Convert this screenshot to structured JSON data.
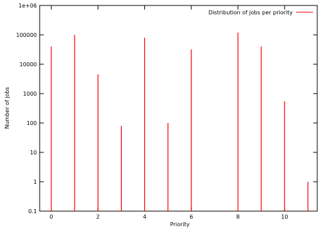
{
  "chart_data": {
    "type": "bar",
    "style": "impulses",
    "title": "",
    "xlabel": "Priority",
    "ylabel": "Number of jobs",
    "yscale": "log",
    "xlim": [
      -0.5,
      11.4
    ],
    "ylim": [
      0.1,
      1000000
    ],
    "x_ticks": [
      0,
      2,
      4,
      6,
      8,
      10
    ],
    "x_tick_labels": [
      "0",
      "2",
      "4",
      "6",
      "8",
      "10"
    ],
    "y_ticks": [
      0.1,
      1,
      10,
      100,
      1000,
      10000,
      100000,
      1000000
    ],
    "y_tick_labels": [
      "0.1",
      "1",
      "10",
      "100",
      "1000",
      "10000",
      "100000",
      "1e+06"
    ],
    "grid": false,
    "legend_position": "top-right",
    "series": [
      {
        "name": "Distribution of jobs per priority",
        "color": "#ff0000",
        "x": [
          0,
          1,
          2,
          3,
          4,
          5,
          6,
          8,
          9,
          10,
          11
        ],
        "values": [
          40000,
          100000,
          4500,
          80,
          80000,
          100,
          32000,
          120000,
          40000,
          550,
          1
        ]
      }
    ]
  }
}
